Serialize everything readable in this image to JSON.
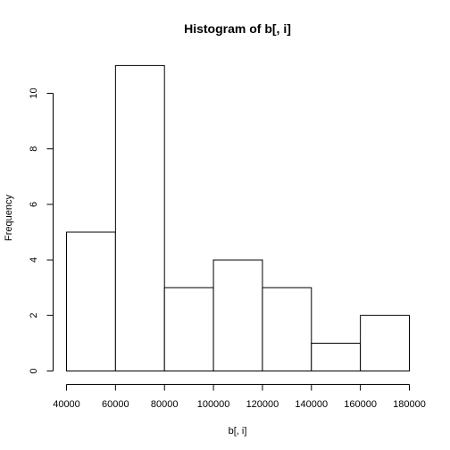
{
  "chart_data": {
    "type": "bar",
    "title": "Histogram of b[, i]",
    "xlabel": "b[, i]",
    "ylabel": "Frequency",
    "bin_edges": [
      40000,
      60000,
      80000,
      100000,
      120000,
      140000,
      160000,
      180000
    ],
    "values": [
      5,
      11,
      3,
      4,
      3,
      1,
      2
    ],
    "xlim": [
      40000,
      180000
    ],
    "ylim": [
      0,
      11
    ],
    "x_ticks": [
      40000,
      60000,
      80000,
      100000,
      120000,
      140000,
      160000,
      180000
    ],
    "y_ticks": [
      0,
      2,
      4,
      6,
      8,
      10
    ],
    "grid": false,
    "legend": "none",
    "colors": {
      "bar_fill": "#ffffff",
      "bar_stroke": "#000000"
    }
  }
}
